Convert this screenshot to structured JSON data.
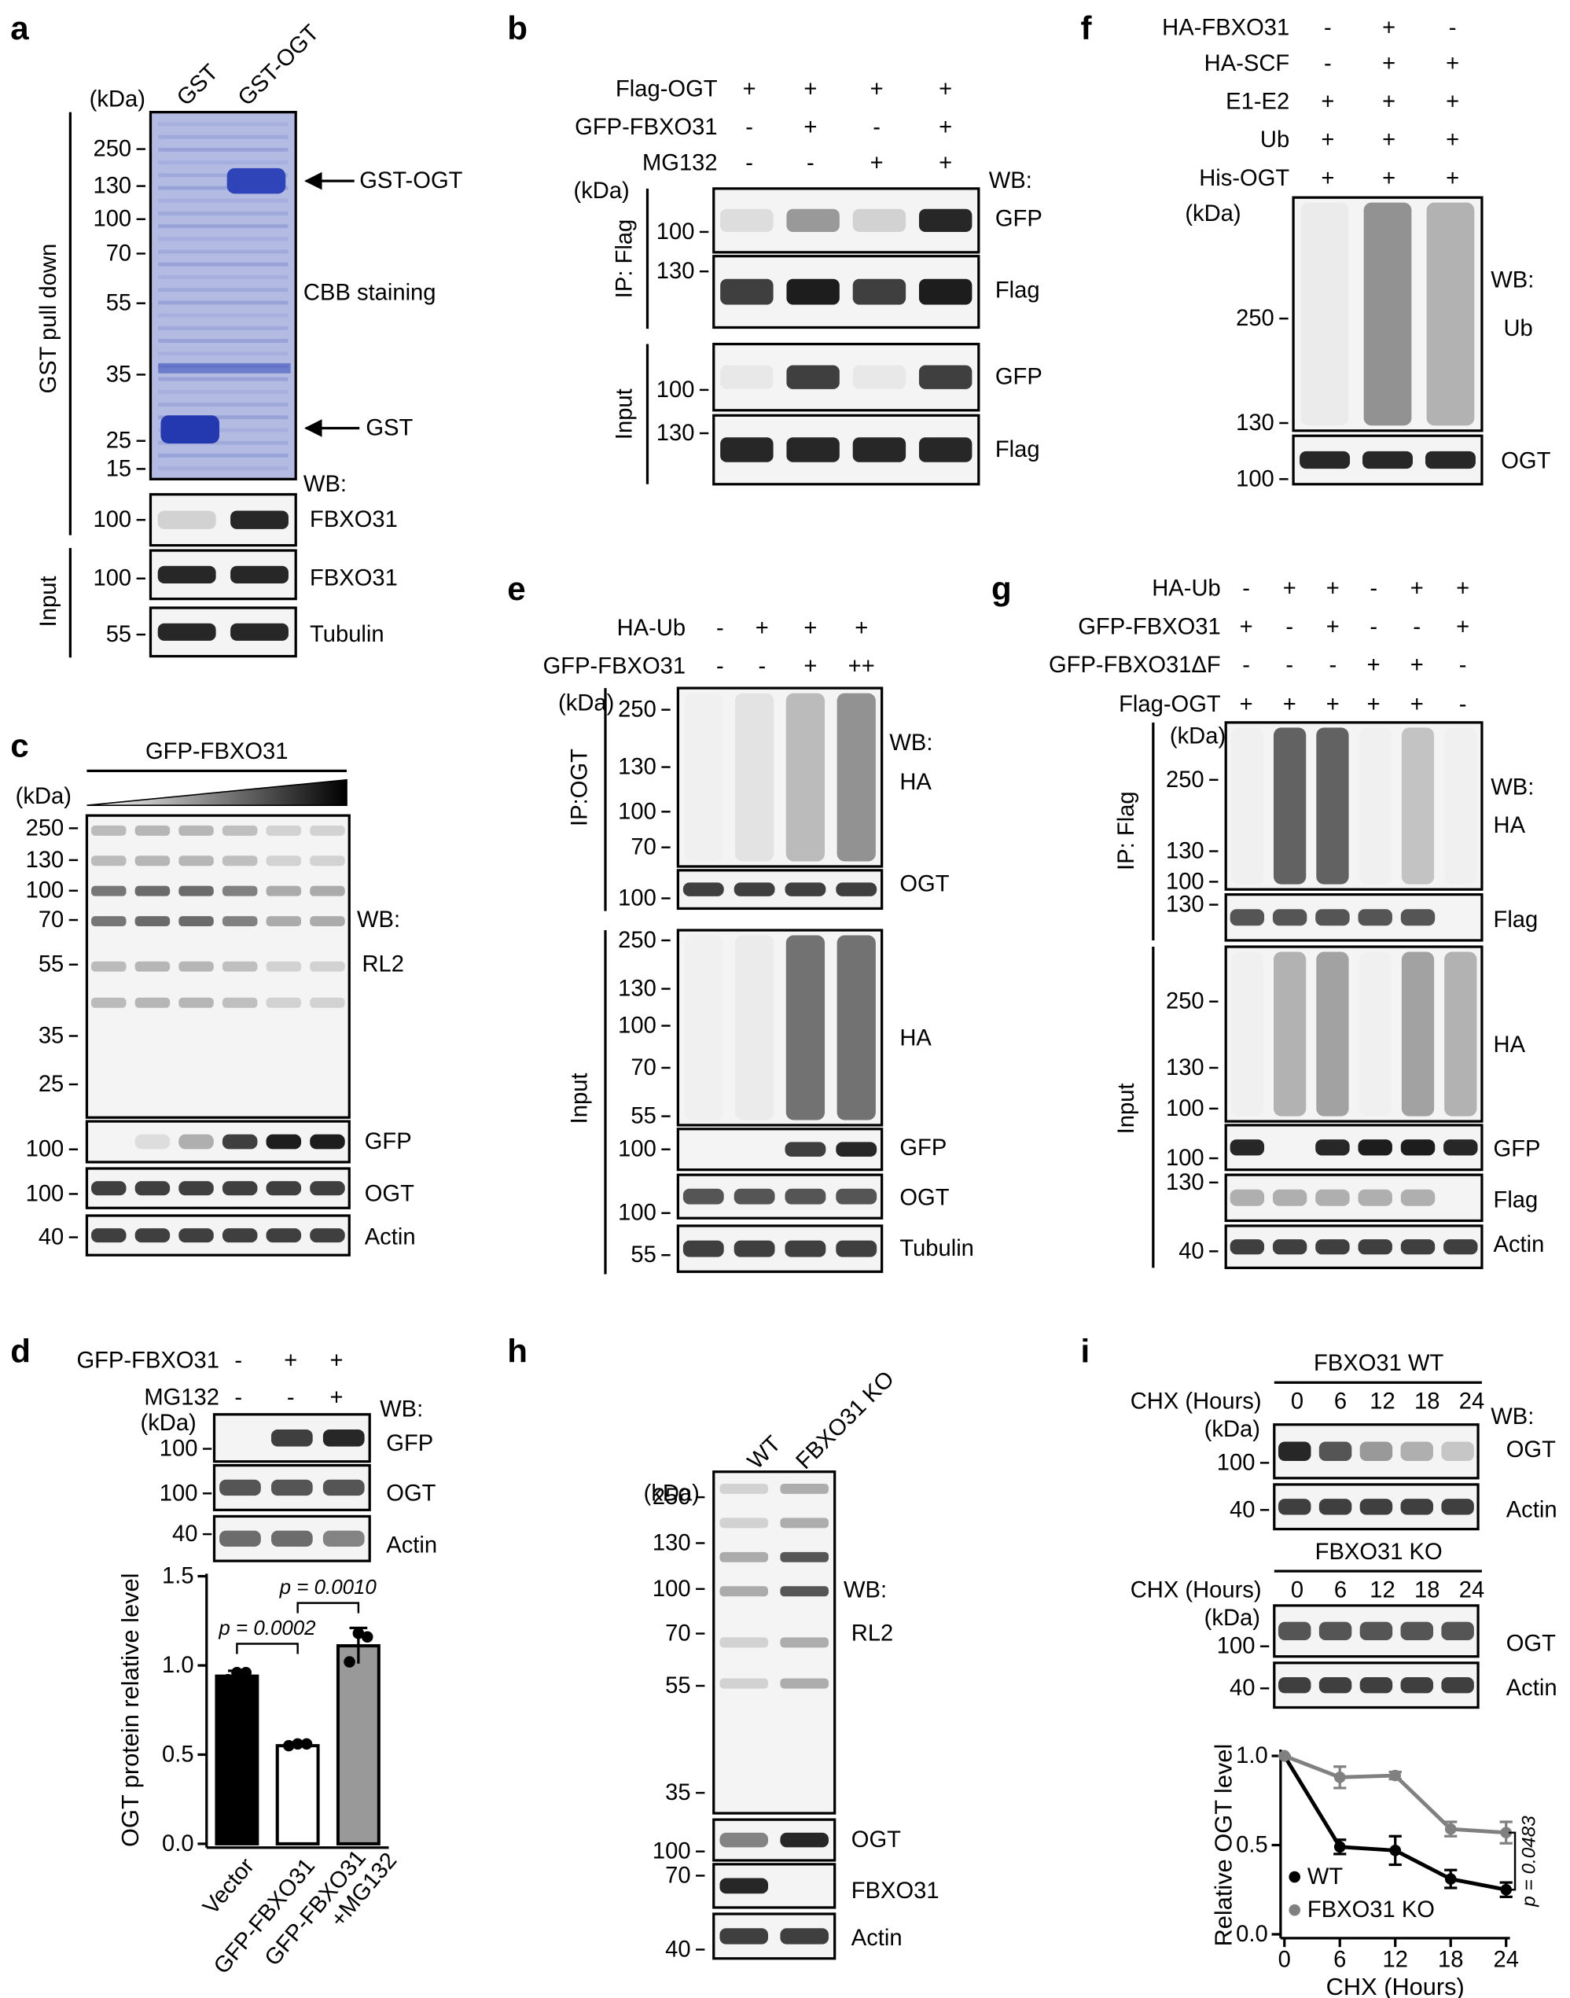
{
  "panels": {
    "a": {
      "label": "a",
      "unit": "(kDa)",
      "lanes": [
        "GST",
        "GST-OGT"
      ],
      "side_label": "GST pull down",
      "markers": [
        "250",
        "130",
        "100",
        "70",
        "55",
        "35",
        "25",
        "15"
      ],
      "arrows": [
        "GST-OGT",
        "GST"
      ],
      "stain": "CBB staining",
      "wb": "WB:",
      "blots": [
        {
          "markers": [
            "100"
          ],
          "name": "FBXO31"
        }
      ],
      "input_label": "Input",
      "input_blots": [
        {
          "markers": [
            "100"
          ],
          "name": "FBXO31"
        },
        {
          "markers": [
            "55"
          ],
          "name": "Tubulin"
        }
      ]
    },
    "b": {
      "label": "b",
      "treatments": [
        {
          "name": "Flag-OGT",
          "signs": [
            "+",
            "+",
            "+",
            "+"
          ]
        },
        {
          "name": "GFP-FBXO31",
          "signs": [
            "-",
            "+",
            "-",
            "+"
          ]
        },
        {
          "name": "MG132",
          "signs": [
            "-",
            "-",
            "+",
            "+"
          ]
        }
      ],
      "unit": "(kDa)",
      "wb": "WB:",
      "ip_label": "IP: Flag",
      "ip_blots": [
        {
          "markers": [
            "100"
          ],
          "name": "GFP"
        },
        {
          "markers": [
            "130"
          ],
          "name": "Flag"
        }
      ],
      "input_label": "Input",
      "input_blots": [
        {
          "markers": [
            "100"
          ],
          "name": "GFP"
        },
        {
          "markers": [
            "130"
          ],
          "name": "Flag"
        }
      ]
    },
    "f": {
      "label": "f",
      "treatments": [
        {
          "name": "HA-FBXO31",
          "signs": [
            "-",
            "+",
            "-"
          ]
        },
        {
          "name": "HA-SCF",
          "signs": [
            "-",
            "+",
            "+"
          ]
        },
        {
          "name": "E1-E2",
          "signs": [
            "+",
            "+",
            "+"
          ]
        },
        {
          "name": "Ub",
          "signs": [
            "+",
            "+",
            "+"
          ]
        },
        {
          "name": "His-OGT",
          "signs": [
            "+",
            "+",
            "+"
          ]
        }
      ],
      "unit": "(kDa)",
      "wb": "WB:",
      "blots": [
        {
          "markers": [
            "250",
            "130"
          ],
          "name": "Ub"
        },
        {
          "markers": [
            "100"
          ],
          "name": "OGT"
        }
      ]
    },
    "c": {
      "label": "c",
      "treatment": "GFP-FBXO31",
      "unit": "(kDa)",
      "wb": "WB:",
      "blots": [
        {
          "markers": [
            "250",
            "130",
            "100",
            "70",
            "55",
            "35",
            "25"
          ],
          "name": "RL2"
        },
        {
          "markers": [
            "100"
          ],
          "name": "GFP"
        },
        {
          "markers": [
            "100"
          ],
          "name": "OGT"
        },
        {
          "markers": [
            "40"
          ],
          "name": "Actin"
        }
      ]
    },
    "e": {
      "label": "e",
      "treatments": [
        {
          "name": "HA-Ub",
          "signs": [
            "-",
            "+",
            "+",
            "+"
          ]
        },
        {
          "name": "GFP-FBXO31",
          "signs": [
            "-",
            "-",
            "+",
            "++"
          ]
        }
      ],
      "unit": "(kDa)",
      "wb": "WB:",
      "ip_label": "IP:OGT",
      "ip_blots": [
        {
          "markers": [
            "250",
            "130",
            "100",
            "70"
          ],
          "name": "HA"
        },
        {
          "markers": [
            "100"
          ],
          "name": "OGT"
        }
      ],
      "input_label": "Input",
      "input_blots": [
        {
          "markers": [
            "250",
            "130",
            "100",
            "70",
            "55"
          ],
          "name": "HA"
        },
        {
          "markers": [
            "100"
          ],
          "name": "GFP"
        },
        {
          "markers": [
            "100"
          ],
          "name": "OGT"
        },
        {
          "markers": [
            "55"
          ],
          "name": "Tubulin"
        }
      ]
    },
    "g": {
      "label": "g",
      "treatments": [
        {
          "name": "HA-Ub",
          "signs": [
            "-",
            "+",
            "+",
            "-",
            "+",
            "+"
          ]
        },
        {
          "name": "GFP-FBXO31",
          "signs": [
            "+",
            "-",
            "+",
            "-",
            "-",
            "+"
          ]
        },
        {
          "name": "GFP-FBXO31ΔF",
          "signs": [
            "-",
            "-",
            "-",
            "+",
            "+",
            "-"
          ]
        },
        {
          "name": "Flag-OGT",
          "signs": [
            "+",
            "+",
            "+",
            "+",
            "+",
            "-"
          ]
        }
      ],
      "unit": "(kDa)",
      "wb": "WB:",
      "ip_label": "IP: Flag",
      "ip_blots": [
        {
          "markers": [
            "250",
            "130",
            "100"
          ],
          "name": "HA"
        },
        {
          "markers": [
            "130"
          ],
          "name": "Flag"
        }
      ],
      "input_label": "Input",
      "input_blots": [
        {
          "markers": [
            "250",
            "130",
            "100"
          ],
          "name": "HA"
        },
        {
          "markers": [
            "100"
          ],
          "name": "GFP"
        },
        {
          "markers": [
            "130"
          ],
          "name": "Flag"
        },
        {
          "markers": [
            "40"
          ],
          "name": "Actin"
        }
      ]
    },
    "d": {
      "label": "d",
      "treatments": [
        {
          "name": "GFP-FBXO31",
          "signs": [
            "-",
            "+",
            "+"
          ]
        },
        {
          "name": "MG132",
          "signs": [
            "-",
            "-",
            "+"
          ]
        }
      ],
      "unit": "(kDa)",
      "wb": "WB:",
      "blots": [
        {
          "markers": [
            "100"
          ],
          "name": "GFP"
        },
        {
          "markers": [
            "100"
          ],
          "name": "OGT"
        },
        {
          "markers": [
            "40"
          ],
          "name": "Actin"
        }
      ]
    },
    "h": {
      "label": "h",
      "lanes": [
        "WT",
        "FBXO31 KO"
      ],
      "unit": "(kDa)",
      "wb": "WB:",
      "blots": [
        {
          "markers": [
            "250",
            "130",
            "100",
            "70",
            "55",
            "35"
          ],
          "name": "RL2"
        },
        {
          "markers": [
            "100"
          ],
          "name": "OGT"
        },
        {
          "markers": [
            "70"
          ],
          "name": "FBXO31"
        },
        {
          "markers": [
            "40"
          ],
          "name": "Actin"
        }
      ]
    },
    "i": {
      "label": "i",
      "wb": "WB:",
      "groups": [
        {
          "title": "FBXO31 WT",
          "time_label": "CHX (Hours)",
          "times": [
            "0",
            "6",
            "12",
            "18",
            "24"
          ],
          "unit": "(kDa)",
          "blots": [
            {
              "markers": [
                "100"
              ],
              "name": "OGT"
            },
            {
              "markers": [
                "40"
              ],
              "name": "Actin"
            }
          ]
        },
        {
          "title": "FBXO31 KO",
          "time_label": "CHX (Hours)",
          "times": [
            "0",
            "6",
            "12",
            "18",
            "24"
          ],
          "unit": "(kDa)",
          "blots": [
            {
              "markers": [
                "100"
              ],
              "name": "OGT"
            },
            {
              "markers": [
                "40"
              ],
              "name": "Actin"
            }
          ]
        }
      ]
    }
  },
  "chart_data": [
    {
      "type": "bar",
      "ylabel": "OGT protein relative level",
      "categories": [
        "Vector",
        "GFP-FBXO31",
        "GFP-FBXO31 +MG132"
      ],
      "values": [
        0.94,
        0.55,
        1.11
      ],
      "errors": [
        0.03,
        0.01,
        0.1
      ],
      "points": [
        [
          0.92,
          0.96,
          0.96
        ],
        [
          0.55,
          0.56,
          0.56
        ],
        [
          1.02,
          1.18,
          1.16
        ]
      ],
      "colors": [
        "#000000",
        "#ffffff",
        "#999999"
      ],
      "ylim": [
        0,
        1.5
      ],
      "yticks": [
        {
          "value": 0,
          "label": "0.0"
        },
        {
          "value": 0.5,
          "label": "0.5"
        },
        {
          "value": 1,
          "label": "1.0"
        },
        {
          "value": 1.5,
          "label": "1.5"
        }
      ],
      "annotations": [
        "p = 0.0002",
        "p = 0.0010"
      ]
    },
    {
      "type": "line",
      "xlabel": "CHX (Hours)",
      "ylabel": "Relative OGT level",
      "x": [
        0,
        6,
        12,
        18,
        24
      ],
      "series": [
        {
          "name": "WT",
          "color": "#000000",
          "values": [
            1.0,
            0.49,
            0.47,
            0.31,
            0.25
          ],
          "errors": [
            0,
            0.04,
            0.08,
            0.05,
            0.04
          ]
        },
        {
          "name": "FBXO31 KO",
          "color": "#808080",
          "values": [
            1.0,
            0.88,
            0.89,
            0.59,
            0.57
          ],
          "errors": [
            0,
            0.06,
            0.02,
            0.04,
            0.06
          ]
        }
      ],
      "xlim": [
        0,
        24
      ],
      "ylim": [
        0,
        1
      ],
      "xticks": [
        0,
        6,
        12,
        18,
        24
      ],
      "yticks": [
        {
          "value": 0,
          "label": "0.0"
        },
        {
          "value": 0.5,
          "label": "0.5"
        },
        {
          "value": 1,
          "label": "1.0"
        }
      ],
      "legend": "lower left",
      "annotation": "p = 0.0483"
    }
  ]
}
